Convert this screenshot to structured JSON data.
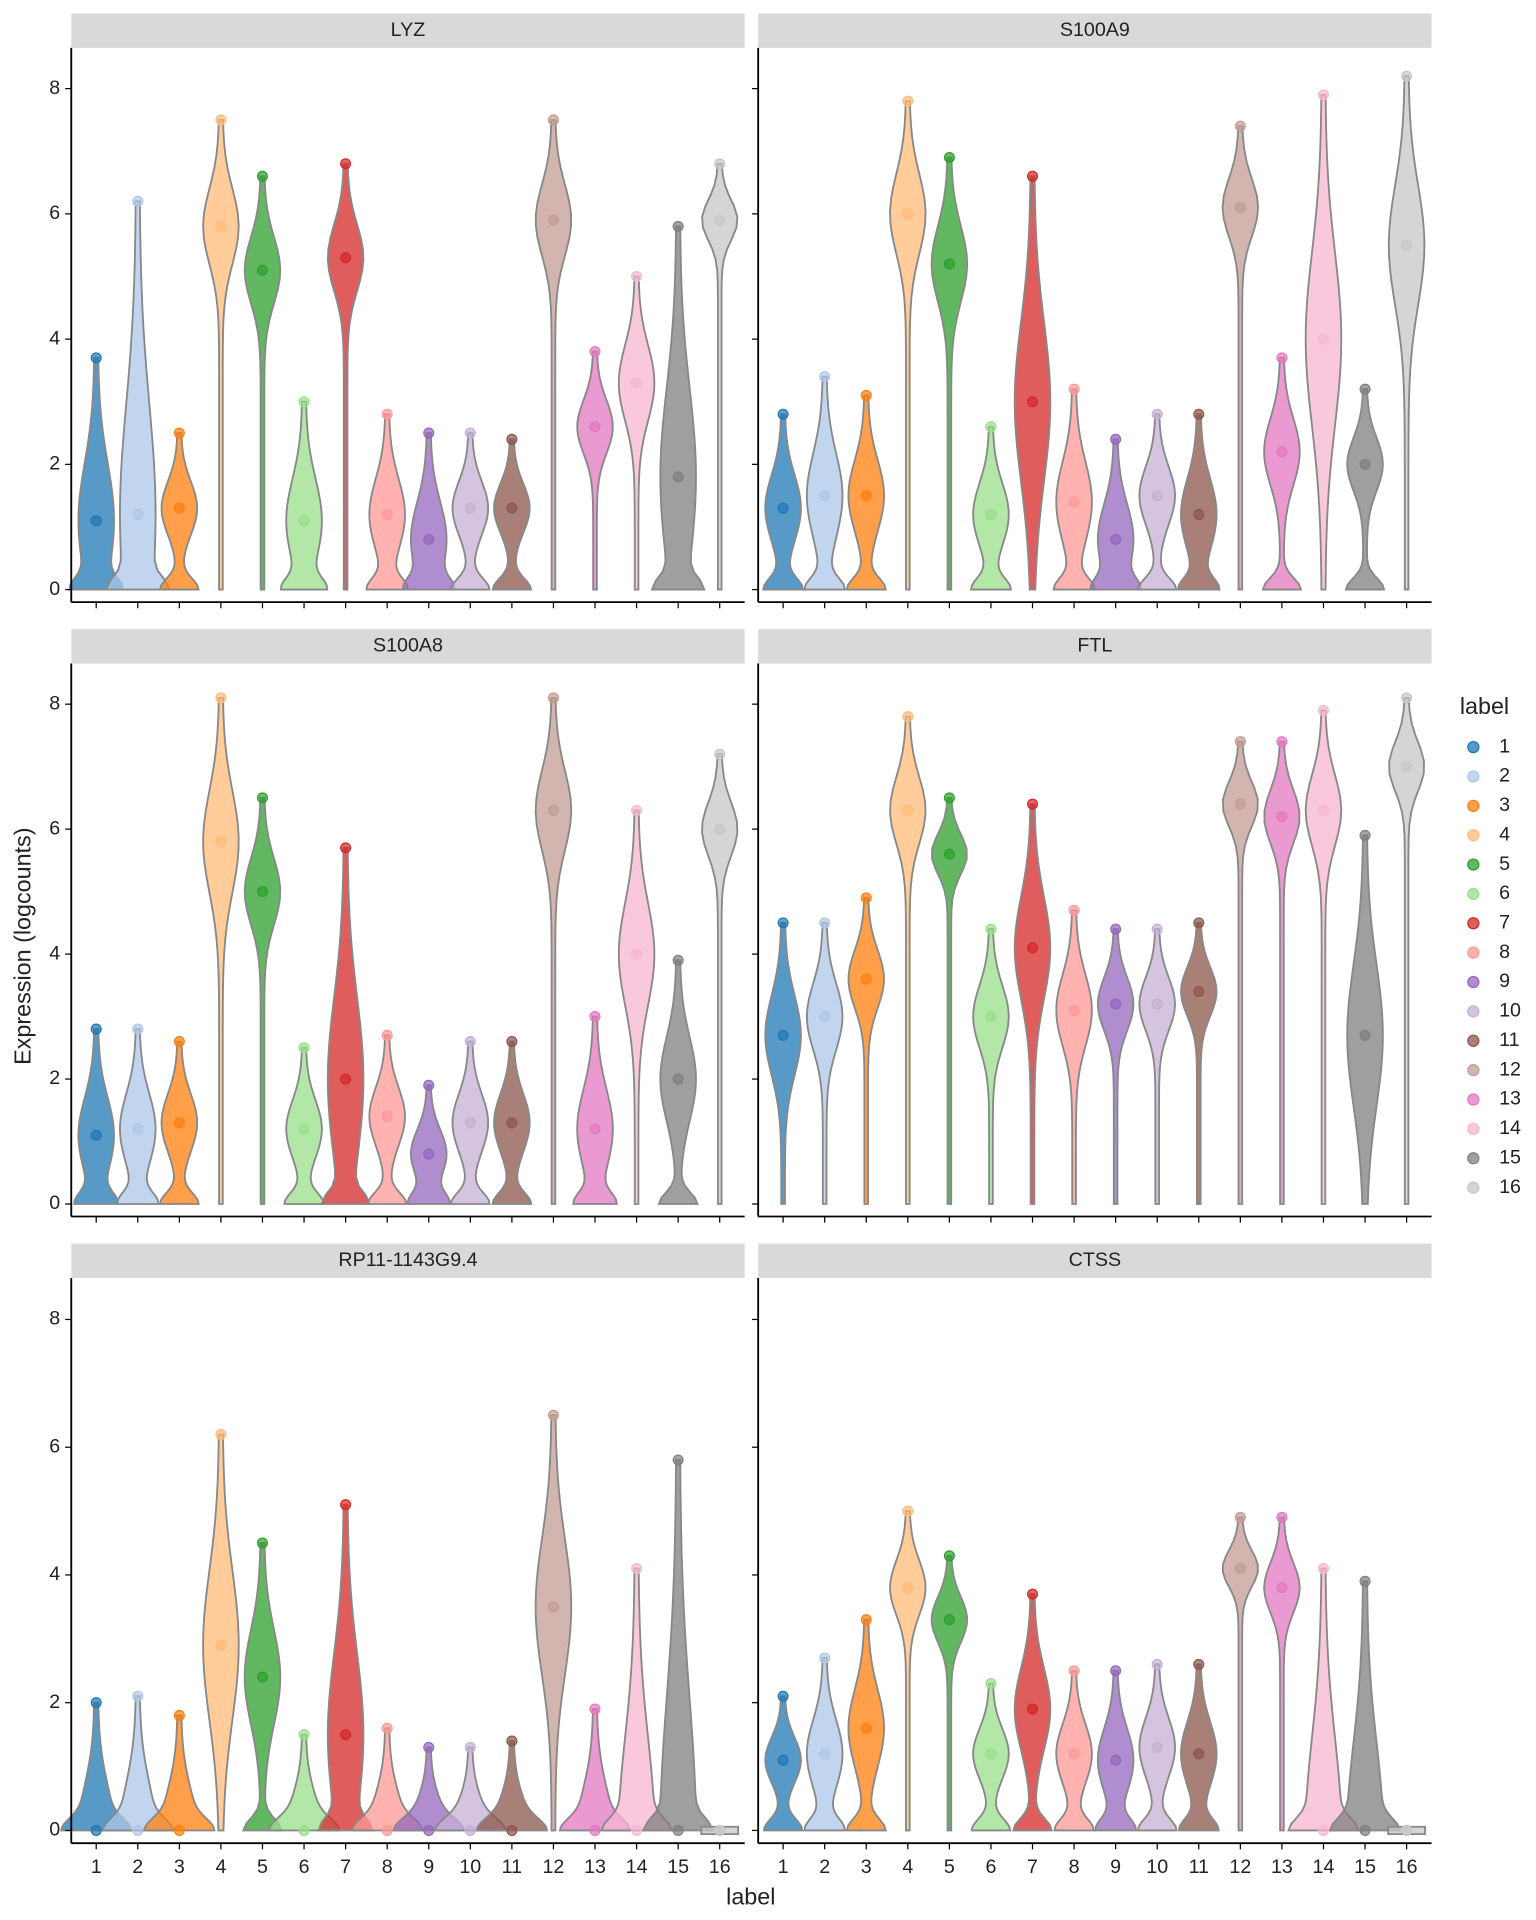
{
  "chart_data": {
    "type": "violin",
    "x_label": "label",
    "y_label": "Expression (logcounts)",
    "legend_title": "label",
    "categories": [
      "1",
      "2",
      "3",
      "4",
      "5",
      "6",
      "7",
      "8",
      "9",
      "10",
      "11",
      "12",
      "13",
      "14",
      "15",
      "16"
    ],
    "colors": [
      "#1f77b4",
      "#aec7e8",
      "#ff7f0e",
      "#ffbb78",
      "#2ca02c",
      "#98df8a",
      "#d62728",
      "#ff9896",
      "#9467bd",
      "#c5b0d5",
      "#8c564b",
      "#c49c94",
      "#e377c2",
      "#f7b6d2",
      "#7f7f7f",
      "#c7c7c7"
    ],
    "ylim": [
      -0.2,
      8.65
    ],
    "yticks": [
      0,
      2,
      4,
      6,
      8
    ],
    "panels": [
      {
        "title": "LYZ",
        "median": [
          1.1,
          1.2,
          1.3,
          5.8,
          5.1,
          1.1,
          5.3,
          1.2,
          0.8,
          1.3,
          1.3,
          5.9,
          2.6,
          3.3,
          1.8,
          5.9
        ],
        "max": [
          3.7,
          6.2,
          2.5,
          7.5,
          6.6,
          3.0,
          6.8,
          2.8,
          2.5,
          2.5,
          2.4,
          7.5,
          3.8,
          5.0,
          5.8,
          6.8
        ]
      },
      {
        "title": "S100A9",
        "median": [
          1.3,
          1.5,
          1.5,
          6.0,
          5.2,
          1.2,
          3.0,
          1.4,
          0.8,
          1.5,
          1.2,
          6.1,
          2.2,
          4.0,
          2.0,
          5.5
        ],
        "max": [
          2.8,
          3.4,
          3.1,
          7.8,
          6.9,
          2.6,
          6.6,
          3.2,
          2.4,
          2.8,
          2.8,
          7.4,
          3.7,
          7.9,
          3.2,
          8.2
        ]
      },
      {
        "title": "S100A8",
        "median": [
          1.1,
          1.2,
          1.3,
          5.8,
          5.0,
          1.2,
          2.0,
          1.4,
          0.8,
          1.3,
          1.3,
          6.3,
          1.2,
          4.0,
          2.0,
          6.0
        ],
        "max": [
          2.8,
          2.8,
          2.6,
          8.1,
          6.5,
          2.5,
          5.7,
          2.7,
          1.9,
          2.6,
          2.6,
          8.1,
          3.0,
          6.3,
          3.9,
          7.2
        ]
      },
      {
        "title": "FTL",
        "median": [
          2.7,
          3.0,
          3.6,
          6.3,
          5.6,
          3.0,
          4.1,
          3.1,
          3.2,
          3.2,
          3.4,
          6.4,
          6.2,
          6.3,
          2.7,
          7.0
        ],
        "max": [
          4.5,
          4.5,
          4.9,
          7.8,
          6.5,
          4.4,
          6.4,
          4.7,
          4.4,
          4.4,
          4.5,
          7.4,
          7.4,
          7.9,
          5.9,
          8.1
        ]
      },
      {
        "title": "RP11-1143G9.4",
        "median": [
          0,
          0,
          0,
          2.9,
          2.4,
          0,
          1.5,
          0,
          0,
          0,
          0,
          3.5,
          0,
          0,
          0,
          0
        ],
        "max": [
          2.0,
          2.1,
          1.8,
          6.2,
          4.5,
          1.5,
          5.1,
          1.6,
          1.3,
          1.3,
          1.4,
          6.5,
          1.9,
          4.1,
          5.8,
          0
        ]
      },
      {
        "title": "CTSS",
        "median": [
          1.1,
          1.2,
          1.6,
          3.8,
          3.3,
          1.2,
          1.9,
          1.2,
          1.1,
          1.3,
          1.2,
          4.1,
          3.8,
          0,
          0,
          0
        ],
        "max": [
          2.1,
          2.7,
          3.3,
          5.0,
          4.3,
          2.3,
          3.7,
          2.5,
          2.5,
          2.6,
          2.6,
          4.9,
          4.9,
          4.1,
          3.9,
          0
        ]
      }
    ]
  }
}
